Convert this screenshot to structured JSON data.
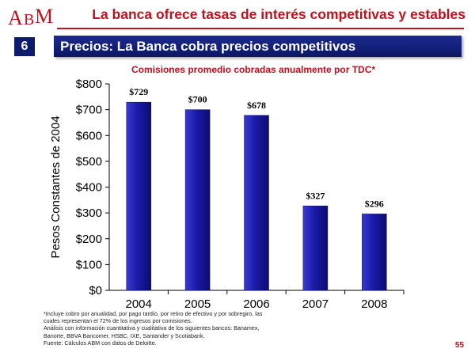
{
  "logo": {
    "text_a": "A",
    "text_b": "B",
    "text_m": "M"
  },
  "header": {
    "title": "La banca ofrece tasas de interés competitivas y estables",
    "section_number": "6",
    "section_title": "Precios: La Banca cobra precios competitivos"
  },
  "colors": {
    "accent_red": "#c0111e",
    "navy": "#0e1a6e",
    "bar_blue": "#1a1a9c"
  },
  "chart_data": {
    "type": "bar",
    "title": "Comisiones promedio cobradas anualmente por TDC*",
    "xlabel": "",
    "ylabel": "Pesos Constantes de 2004",
    "categories": [
      "2004",
      "2005",
      "2006",
      "2007",
      "2008"
    ],
    "values": [
      729,
      700,
      678,
      327,
      296
    ],
    "value_labels": [
      "$729",
      "$700",
      "$678",
      "$327",
      "$296"
    ],
    "ylim": [
      0,
      800
    ],
    "yticks": [
      0,
      100,
      200,
      300,
      400,
      500,
      600,
      700,
      800
    ],
    "ytick_labels": [
      "$0",
      "$100",
      "$200",
      "$300",
      "$400",
      "$500",
      "$600",
      "$700",
      "$800"
    ],
    "grid": false,
    "legend": "none"
  },
  "footnotes": [
    "*Incluye cobro por anualidad, por pago tardío, por retiro de efectivo y por sobregiro, las",
    "cuales representan el 72% de los ingresos por comisiones.",
    "Análisis con información cuantitativa y cualitativa de los siguientes bancos: Banamex,",
    "Banorte, BBVA Bancomer, HSBC, IXE, Santander y Scotiabank.",
    "Fuente: Cálculos ABM con datos de Deloitte."
  ],
  "page_number": "55"
}
